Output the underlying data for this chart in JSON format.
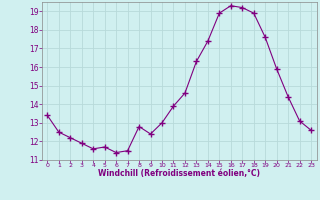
{
  "x": [
    0,
    1,
    2,
    3,
    4,
    5,
    6,
    7,
    8,
    9,
    10,
    11,
    12,
    13,
    14,
    15,
    16,
    17,
    18,
    19,
    20,
    21,
    22,
    23
  ],
  "y": [
    13.4,
    12.5,
    12.2,
    11.9,
    11.6,
    11.7,
    11.4,
    11.5,
    12.8,
    12.4,
    13.0,
    13.9,
    14.6,
    16.3,
    17.4,
    18.9,
    19.3,
    19.2,
    18.9,
    17.6,
    15.9,
    14.4,
    13.1,
    12.6
  ],
  "line_color": "#800080",
  "marker": "+",
  "marker_size": 4,
  "background_color": "#d0f0f0",
  "grid_color": "#b8dada",
  "xlabel": "Windchill (Refroidissement éolien,°C)",
  "xlabel_color": "#800080",
  "tick_label_color": "#800080",
  "ylim": [
    11,
    19.5
  ],
  "xlim": [
    -0.5,
    23.5
  ],
  "yticks": [
    11,
    12,
    13,
    14,
    15,
    16,
    17,
    18,
    19
  ],
  "xticks": [
    0,
    1,
    2,
    3,
    4,
    5,
    6,
    7,
    8,
    9,
    10,
    11,
    12,
    13,
    14,
    15,
    16,
    17,
    18,
    19,
    20,
    21,
    22,
    23
  ]
}
